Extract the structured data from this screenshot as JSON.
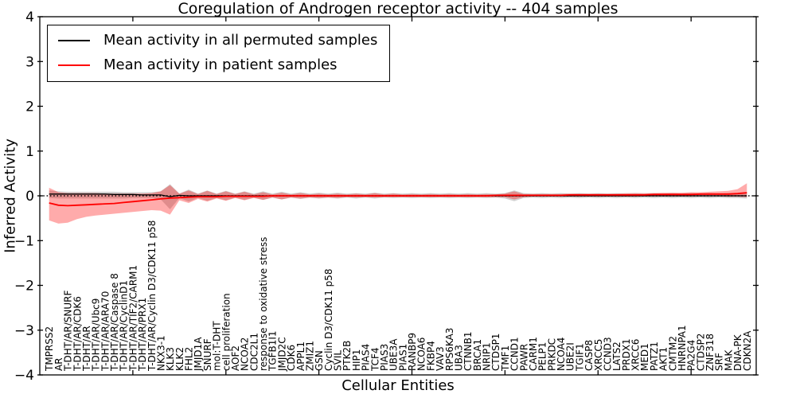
{
  "chart_data": {
    "type": "line",
    "title": "Coregulation of Androgen receptor activity -- 404 samples",
    "xlabel": "Cellular Entities",
    "ylabel": "Inferred Activity",
    "ylim": [
      -4,
      4
    ],
    "yticks": [
      4,
      3,
      2,
      1,
      0,
      -1,
      -2,
      -3,
      -4
    ],
    "xtick_interval": 10,
    "grid": false,
    "legend_position": "upper left",
    "zero_line": {
      "y": 0,
      "style": "dotted",
      "color": "#000000"
    },
    "categories": [
      "TMPRSS2",
      "AR",
      "T-DHT/AR/SNURF",
      "T-DHT/AR/CDK6",
      "T-DHT/AR",
      "T-DHT/AR/Ubc9",
      "T-DHT/AR/ARA70",
      "T-DHT/AR/Caspase 8",
      "T-DHT/AR/CyclinD1",
      "T-DHT/AR/TIF2/CARM1",
      "T-DHT/AR/PRX1",
      "T-DHT/AR/Cyclin D3/CDK11 p58",
      "NKX3-1",
      "KLK3",
      "KLK2",
      "FHL2",
      "JMJD1A",
      "SNURF",
      "mol:T-DHT",
      "cell proliferation",
      "AOF2",
      "NCOA2",
      "CDC2L1",
      "response to oxidative stress",
      "TGFB1I1",
      "JMJD2C",
      "CDK6",
      "APPL1",
      "ZMIZ1",
      "GSN",
      "Cyclin D3/CDK11 p58",
      "SVIL",
      "PTK2B",
      "HIP1",
      "PIAS4",
      "TCF4",
      "PIAS3",
      "UBE3A",
      "PIAS1",
      "RANBP9",
      "NCOA6",
      "FKBP4",
      "VAV3",
      "RPS6KA3",
      "UBA3",
      "CTNNB1",
      "BRCA1",
      "NRIP1",
      "CTDSP1",
      "TMF1",
      "CCND1",
      "PAWR",
      "CARM1",
      "PELP1",
      "PRKDC",
      "NCOA4",
      "UBE2I",
      "TGIF1",
      "CASP8",
      "XRCC5",
      "CCND3",
      "LATS2",
      "PRDX1",
      "XRCC6",
      "MED1",
      "PATZ1",
      "AKT1",
      "CMTM2",
      "HNRNPA1",
      "PA2G4",
      "CTDSP2",
      "ZNF318",
      "SRF",
      "MAK",
      "DNA-PK",
      "CDKN2A"
    ],
    "series": [
      {
        "name": "Mean activity in all permuted samples",
        "color": "#000000",
        "line_width": 1.3,
        "band_color": "#999999",
        "band_opacity": 0.45,
        "values": [
          0.04,
          0.04,
          0.04,
          0.04,
          0.04,
          0.04,
          0.04,
          0.03,
          0.03,
          0.03,
          0.02,
          0.02,
          0.02,
          -0.02,
          0.01,
          0.0,
          0.0,
          0.0,
          0.0,
          0.0,
          0,
          0,
          0,
          0,
          0,
          0,
          0,
          0,
          0,
          0,
          0,
          0,
          0,
          0,
          0,
          0,
          0,
          0,
          0,
          0,
          0,
          0,
          0,
          0,
          0,
          0,
          0,
          0,
          0,
          0,
          0,
          0,
          0,
          0,
          0,
          0,
          0,
          0,
          0,
          0,
          0,
          0,
          0,
          0,
          0,
          0,
          0,
          0,
          0,
          0,
          0,
          0,
          0,
          0,
          0,
          0
        ],
        "band_upper": [
          0.12,
          0.1,
          0.09,
          0.09,
          0.09,
          0.09,
          0.09,
          0.09,
          0.08,
          0.08,
          0.08,
          0.08,
          0.1,
          0.26,
          0.05,
          0.14,
          0.05,
          0.12,
          0.05,
          0.11,
          0.05,
          0.1,
          0.05,
          0.1,
          0.05,
          0.09,
          0.05,
          0.08,
          0.05,
          0.07,
          0.05,
          0.07,
          0.05,
          0.06,
          0.05,
          0.07,
          0.05,
          0.06,
          0.05,
          0.06,
          0.05,
          0.06,
          0.05,
          0.06,
          0.05,
          0.06,
          0.05,
          0.06,
          0.05,
          0.06,
          0.12,
          0.06,
          0.05,
          0.06,
          0.05,
          0.06,
          0.05,
          0.06,
          0.05,
          0.06,
          0.05,
          0.06,
          0.05,
          0.06,
          0.05,
          0.06,
          0.05,
          0.06,
          0.05,
          0.06,
          0.05,
          0.06,
          0.05,
          0.06,
          0.06,
          0.08
        ],
        "band_lower": [
          -0.05,
          -0.06,
          -0.06,
          -0.06,
          -0.06,
          -0.06,
          -0.06,
          -0.06,
          -0.06,
          -0.05,
          -0.05,
          -0.05,
          -0.08,
          -0.3,
          -0.05,
          -0.13,
          -0.05,
          -0.11,
          -0.05,
          -0.1,
          -0.04,
          -0.09,
          -0.04,
          -0.09,
          -0.04,
          -0.08,
          -0.04,
          -0.07,
          -0.04,
          -0.06,
          -0.04,
          -0.06,
          -0.04,
          -0.06,
          -0.04,
          -0.06,
          -0.04,
          -0.05,
          -0.04,
          -0.05,
          -0.04,
          -0.05,
          -0.04,
          -0.05,
          -0.04,
          -0.05,
          -0.04,
          -0.05,
          -0.04,
          -0.06,
          -0.12,
          -0.05,
          -0.04,
          -0.05,
          -0.04,
          -0.05,
          -0.04,
          -0.05,
          -0.04,
          -0.05,
          -0.04,
          -0.05,
          -0.04,
          -0.05,
          -0.04,
          -0.05,
          -0.04,
          -0.05,
          -0.04,
          -0.05,
          -0.04,
          -0.05,
          -0.04,
          -0.05,
          -0.05,
          -0.06
        ]
      },
      {
        "name": "Mean activity in patient samples",
        "color": "#ff0000",
        "line_width": 1.8,
        "band_color": "#ff0000",
        "band_opacity": 0.33,
        "values": [
          -0.16,
          -0.21,
          -0.22,
          -0.21,
          -0.2,
          -0.19,
          -0.18,
          -0.17,
          -0.15,
          -0.13,
          -0.11,
          -0.09,
          -0.07,
          -0.05,
          -0.04,
          -0.03,
          -0.02,
          -0.02,
          -0.02,
          -0.01,
          -0.01,
          -0.01,
          -0.01,
          -0.01,
          0,
          0,
          0,
          0,
          0,
          0,
          0,
          0,
          0,
          0,
          0,
          0,
          0,
          0,
          0,
          0,
          0,
          0,
          0,
          0,
          0,
          0,
          0,
          0,
          0.01,
          0.01,
          0.01,
          0.01,
          0.01,
          0.01,
          0.01,
          0.01,
          0.02,
          0.02,
          0.02,
          0.02,
          0.02,
          0.02,
          0.02,
          0.02,
          0.02,
          0.03,
          0.03,
          0.03,
          0.03,
          0.03,
          0.04,
          0.04,
          0.04,
          0.04,
          0.05,
          0.07
        ],
        "band_upper": [
          0.18,
          0.08,
          0.06,
          0.06,
          0.06,
          0.06,
          0.05,
          0.05,
          0.05,
          0.05,
          0.05,
          0.06,
          0.1,
          0.24,
          0.05,
          0.12,
          0.04,
          0.11,
          0.04,
          0.1,
          0.04,
          0.09,
          0.03,
          0.08,
          0.03,
          0.07,
          0.03,
          0.06,
          0.03,
          0.05,
          0.03,
          0.05,
          0.03,
          0.05,
          0.03,
          0.06,
          0.03,
          0.05,
          0.03,
          0.04,
          0.03,
          0.04,
          0.03,
          0.04,
          0.03,
          0.04,
          0.03,
          0.04,
          0.03,
          0.05,
          0.1,
          0.04,
          0.04,
          0.04,
          0.04,
          0.04,
          0.05,
          0.05,
          0.05,
          0.05,
          0.05,
          0.05,
          0.06,
          0.06,
          0.06,
          0.06,
          0.07,
          0.07,
          0.07,
          0.08,
          0.08,
          0.09,
          0.1,
          0.11,
          0.15,
          0.28
        ],
        "band_lower": [
          -0.55,
          -0.62,
          -0.6,
          -0.52,
          -0.47,
          -0.44,
          -0.42,
          -0.4,
          -0.38,
          -0.36,
          -0.34,
          -0.32,
          -0.33,
          -0.42,
          -0.1,
          -0.16,
          -0.07,
          -0.13,
          -0.06,
          -0.11,
          -0.05,
          -0.1,
          -0.05,
          -0.09,
          -0.04,
          -0.08,
          -0.04,
          -0.06,
          -0.04,
          -0.05,
          -0.04,
          -0.05,
          -0.03,
          -0.04,
          -0.03,
          -0.04,
          -0.03,
          -0.03,
          -0.03,
          -0.03,
          -0.03,
          -0.03,
          -0.03,
          -0.03,
          -0.03,
          -0.03,
          -0.03,
          -0.03,
          -0.03,
          -0.03,
          -0.08,
          -0.03,
          -0.02,
          -0.02,
          -0.02,
          -0.02,
          -0.02,
          -0.02,
          -0.02,
          -0.02,
          -0.02,
          -0.02,
          -0.02,
          -0.02,
          -0.01,
          -0.01,
          -0.01,
          -0.01,
          -0.01,
          -0.01,
          -0.01,
          -0.01,
          -0.01,
          -0.02,
          -0.02,
          -0.03
        ]
      }
    ]
  }
}
